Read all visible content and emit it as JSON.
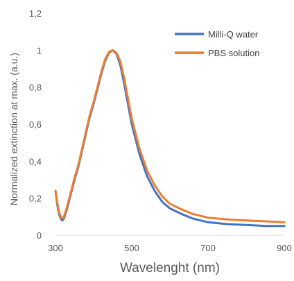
{
  "chart_data": {
    "type": "line",
    "title": "",
    "xlabel": "Wavelenght (nm)",
    "ylabel": "Normalized extinction at max. (a.u.)",
    "xlim": [
      300,
      900
    ],
    "ylim": [
      0,
      1.2
    ],
    "x_ticks": [
      "300",
      "500",
      "700",
      "900"
    ],
    "y_ticks": [
      "0",
      "0,2",
      "0,4",
      "0,6",
      "0,8",
      "1",
      "1,2"
    ],
    "grid": false,
    "legend_position": "top-right",
    "series": [
      {
        "name": "Milli-Q water",
        "color": "#4472C4",
        "x": [
          300,
          305,
          310,
          315,
          318,
          322,
          330,
          340,
          350,
          360,
          370,
          380,
          390,
          400,
          410,
          420,
          430,
          440,
          450,
          460,
          470,
          480,
          490,
          500,
          520,
          540,
          560,
          580,
          600,
          630,
          660,
          700,
          750,
          800,
          850,
          900
        ],
        "y": [
          0.24,
          0.16,
          0.11,
          0.085,
          0.08,
          0.09,
          0.14,
          0.22,
          0.3,
          0.37,
          0.46,
          0.55,
          0.64,
          0.71,
          0.79,
          0.87,
          0.94,
          0.985,
          1.0,
          0.98,
          0.92,
          0.82,
          0.71,
          0.6,
          0.44,
          0.32,
          0.24,
          0.18,
          0.145,
          0.115,
          0.09,
          0.07,
          0.06,
          0.055,
          0.05,
          0.05
        ]
      },
      {
        "name": "PBS solution",
        "color": "#ED7D31",
        "x": [
          300,
          305,
          310,
          315,
          318,
          322,
          330,
          340,
          350,
          360,
          370,
          380,
          390,
          400,
          410,
          420,
          430,
          440,
          450,
          460,
          470,
          480,
          490,
          500,
          520,
          540,
          560,
          580,
          600,
          630,
          660,
          700,
          750,
          800,
          850,
          900
        ],
        "y": [
          0.24,
          0.17,
          0.12,
          0.095,
          0.09,
          0.1,
          0.15,
          0.23,
          0.31,
          0.38,
          0.47,
          0.56,
          0.65,
          0.72,
          0.8,
          0.88,
          0.95,
          0.99,
          1.0,
          0.985,
          0.94,
          0.85,
          0.74,
          0.63,
          0.47,
          0.35,
          0.27,
          0.21,
          0.17,
          0.14,
          0.115,
          0.095,
          0.085,
          0.08,
          0.075,
          0.07
        ]
      }
    ]
  }
}
